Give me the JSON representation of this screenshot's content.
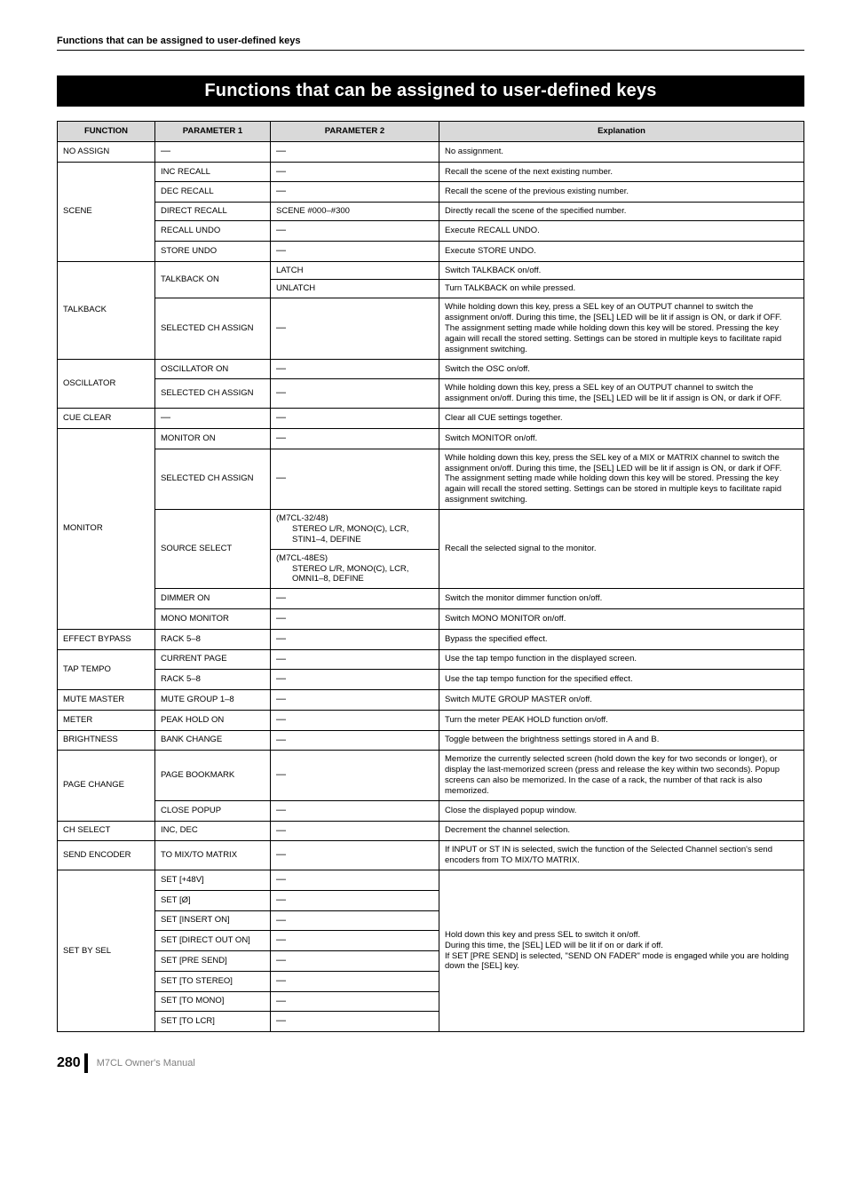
{
  "runningHead": "Functions that can be assigned to user-defined keys",
  "titleBar": "Functions that can be assigned to user-defined keys",
  "headers": {
    "c1": "FUNCTION",
    "c2": "PARAMETER 1",
    "c3": "PARAMETER 2",
    "c4": "Explanation"
  },
  "dash": "—",
  "noAssign": {
    "fn": "NO ASSIGN",
    "expl": "No assignment."
  },
  "scene": {
    "fn": "SCENE",
    "incRecall": {
      "p1": "INC RECALL",
      "expl": "Recall the scene of the next existing number."
    },
    "decRecall": {
      "p1": "DEC RECALL",
      "expl": "Recall the scene of the previous existing number."
    },
    "directRecall": {
      "p1": "DIRECT RECALL",
      "p2": "SCENE #000–#300",
      "expl": "Directly recall the scene of the specified number."
    },
    "recallUndo": {
      "p1": "RECALL UNDO",
      "expl": "Execute RECALL UNDO."
    },
    "storeUndo": {
      "p1": "STORE UNDO",
      "expl": "Execute STORE UNDO."
    }
  },
  "talkback": {
    "fn": "TALKBACK",
    "on": {
      "p1": "TALKBACK ON",
      "latch": "LATCH",
      "latchExpl": "Switch TALKBACK on/off.",
      "unlatch": "UNLATCH",
      "unlatchExpl": "Turn TALKBACK on while pressed."
    },
    "sel": {
      "p1": "SELECTED CH ASSIGN",
      "expl": "While holding down this key, press a SEL key of an OUTPUT channel to switch the assignment on/off. During this time, the [SEL] LED will be lit if assign is ON, or dark if OFF.\nThe assignment setting made while holding down this key will be stored. Pressing the key again will recall the stored setting. Settings can be stored in multiple keys to facilitate rapid assignment switching."
    }
  },
  "oscillator": {
    "fn": "OSCILLATOR",
    "on": {
      "p1": "OSCILLATOR ON",
      "expl": "Switch the OSC on/off."
    },
    "sel": {
      "p1": "SELECTED CH ASSIGN",
      "expl": "While holding down this key, press a SEL key of an OUTPUT channel to switch the assignment on/off. During this time, the [SEL] LED will be lit if assign is ON, or dark if OFF."
    }
  },
  "cueClear": {
    "fn": "CUE CLEAR",
    "expl": "Clear all CUE settings together."
  },
  "monitor": {
    "fn": "MONITOR",
    "on": {
      "p1": "MONITOR ON",
      "expl": "Switch MONITOR on/off."
    },
    "sel": {
      "p1": "SELECTED CH ASSIGN",
      "expl": "While holding down this key, press the SEL key of a MIX or MATRIX channel to switch the assignment on/off. During this time, the [SEL] LED will be lit if assign is ON, or dark if OFF.\nThe assignment setting made while holding down this key will be stored. Pressing the key again will recall the stored setting. Settings can be stored in multiple keys to facilitate rapid assignment switching."
    },
    "src": {
      "p1": "SOURCE SELECT",
      "p2a_head": "(M7CL-32/48)",
      "p2a_sub": "STEREO L/R, MONO(C), LCR, STIN1–4, DEFINE",
      "p2b_head": "(M7CL-48ES)",
      "p2b_sub": "STEREO L/R, MONO(C), LCR, OMNI1–8, DEFINE",
      "expl": "Recall the selected signal to the monitor."
    },
    "dimmer": {
      "p1": "DIMMER ON",
      "expl": "Switch the monitor dimmer function on/off."
    },
    "mono": {
      "p1": "MONO MONITOR",
      "expl": "Switch MONO MONITOR on/off."
    }
  },
  "effectBypass": {
    "fn": "EFFECT BYPASS",
    "p1": "RACK 5–8",
    "expl": "Bypass the specified effect."
  },
  "tapTempo": {
    "fn": "TAP TEMPO",
    "cur": {
      "p1": "CURRENT PAGE",
      "expl": "Use the tap tempo function in the displayed screen."
    },
    "rack": {
      "p1": "RACK 5–8",
      "expl": "Use the tap tempo function for the specified effect."
    }
  },
  "muteMaster": {
    "fn": "MUTE MASTER",
    "p1": "MUTE GROUP 1–8",
    "expl": "Switch MUTE GROUP MASTER on/off."
  },
  "meter": {
    "fn": "METER",
    "p1": "PEAK HOLD ON",
    "expl": "Turn the meter PEAK HOLD function on/off."
  },
  "brightness": {
    "fn": "BRIGHTNESS",
    "p1": "BANK CHANGE",
    "expl": "Toggle between the brightness settings stored in A and B."
  },
  "pageChange": {
    "fn": "PAGE CHANGE",
    "bookmark": {
      "p1": "PAGE BOOKMARK",
      "expl": "Memorize the currently selected screen (hold down the key for two seconds or longer), or display the last-memorized screen (press and release the key within two seconds). Popup screens can also be memorized. In the case of a rack, the number of that rack is also memorized."
    },
    "close": {
      "p1": "CLOSE POPUP",
      "expl": "Close the displayed popup window."
    }
  },
  "chSelect": {
    "fn": "CH SELECT",
    "p1": "INC, DEC",
    "expl": "Decrement the channel selection."
  },
  "sendEncoder": {
    "fn": "SEND ENCODER",
    "p1": "TO MIX/TO MATRIX",
    "expl": "If INPUT or ST IN is selected, swich the function of the Selected Channel section's send encoders from TO MIX/TO MATRIX."
  },
  "setBySel": {
    "fn": "SET BY SEL",
    "rows": {
      "r1": "SET [+48V]",
      "r2": "SET [Ø]",
      "r3": "SET [INSERT ON]",
      "r4": "SET [DIRECT OUT ON]",
      "r5": "SET [PRE SEND]",
      "r6": "SET [TO STEREO]",
      "r7": "SET [TO MONO]",
      "r8": "SET [TO LCR]"
    },
    "expl": "Hold down this key and press SEL to switch it on/off.\nDuring this time, the [SEL] LED will be lit if on or dark if off.\nIf SET [PRE SEND] is selected, \"SEND ON FADER\" mode is engaged while you are holding down the [SEL] key."
  },
  "footer": {
    "page": "280",
    "manual": "M7CL  Owner's Manual"
  }
}
